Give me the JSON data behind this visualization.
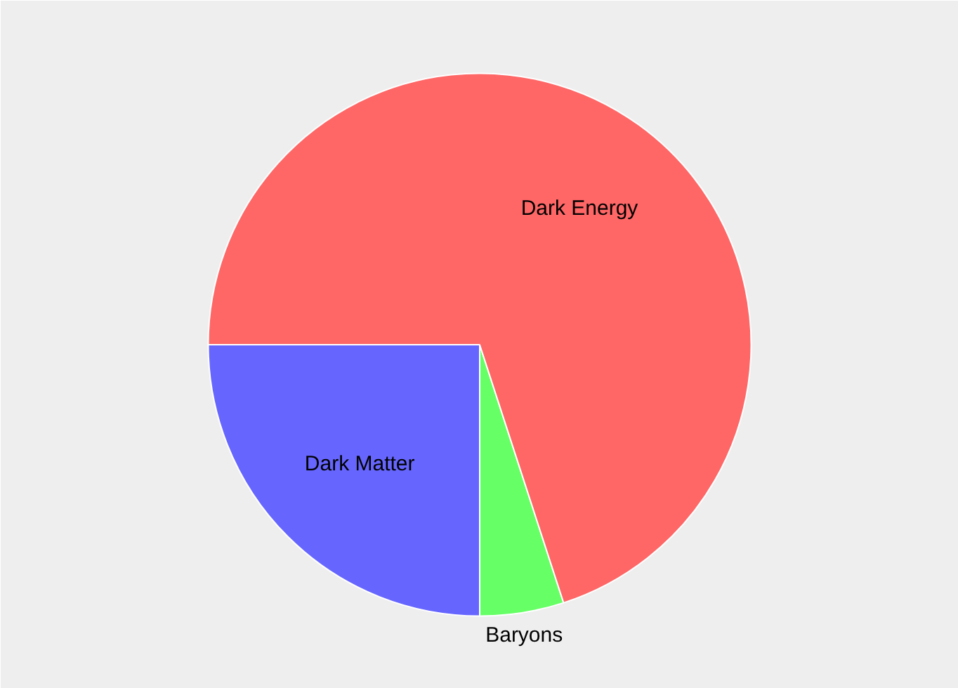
{
  "chart_data": {
    "type": "pie",
    "categories": [
      "Dark Matter",
      "Baryons",
      "Dark Energy"
    ],
    "values": [
      25,
      5,
      70
    ],
    "colors": [
      "#6666ff",
      "#66ff66",
      "#ff6666"
    ],
    "legend": false
  }
}
